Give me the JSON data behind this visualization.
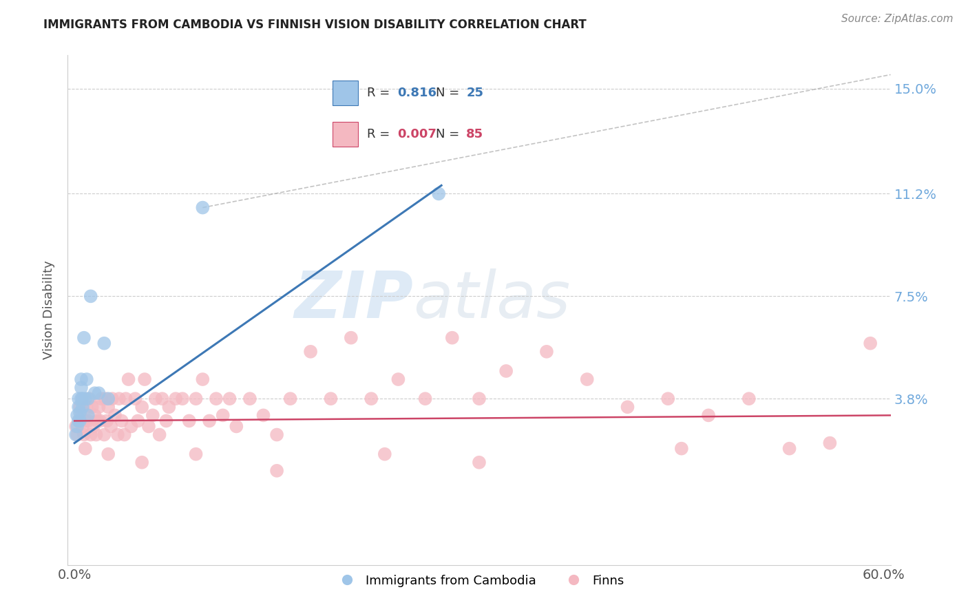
{
  "title": "IMMIGRANTS FROM CAMBODIA VS FINNISH VISION DISABILITY CORRELATION CHART",
  "source": "Source: ZipAtlas.com",
  "ylabel": "Vision Disability",
  "legend_label_blue": "Immigrants from Cambodia",
  "legend_label_pink": "Finns",
  "R_blue": 0.816,
  "N_blue": 25,
  "R_pink": 0.007,
  "N_pink": 85,
  "xlim": [
    -0.005,
    0.605
  ],
  "ylim": [
    -0.022,
    0.162
  ],
  "yticks": [
    0.038,
    0.075,
    0.112,
    0.15
  ],
  "ytick_labels": [
    "3.8%",
    "7.5%",
    "11.2%",
    "15.0%"
  ],
  "xticks": [
    0.0,
    0.6
  ],
  "xtick_labels": [
    "0.0%",
    "60.0%"
  ],
  "watermark_zip": "ZIP",
  "watermark_atlas": "atlas",
  "color_blue": "#9fc5e8",
  "color_pink": "#f4b8c1",
  "color_blue_dark": "#3d78b5",
  "color_pink_dark": "#cc4466",
  "color_blue_line": "#3d78b5",
  "color_pink_line": "#cc4466",
  "color_right_labels": "#6fa8dc",
  "blue_scatter_x": [
    0.001,
    0.002,
    0.002,
    0.003,
    0.003,
    0.003,
    0.004,
    0.004,
    0.005,
    0.005,
    0.005,
    0.006,
    0.006,
    0.007,
    0.008,
    0.009,
    0.01,
    0.01,
    0.012,
    0.015,
    0.018,
    0.022,
    0.025,
    0.095,
    0.27
  ],
  "blue_scatter_y": [
    0.025,
    0.028,
    0.032,
    0.03,
    0.035,
    0.038,
    0.03,
    0.033,
    0.038,
    0.042,
    0.045,
    0.035,
    0.038,
    0.06,
    0.038,
    0.045,
    0.032,
    0.038,
    0.075,
    0.04,
    0.04,
    0.058,
    0.038,
    0.107,
    0.112
  ],
  "blue_line_x": [
    0.0,
    0.272
  ],
  "blue_line_y": [
    0.022,
    0.115
  ],
  "pink_line_x": [
    0.0,
    0.605
  ],
  "pink_line_y": [
    0.03,
    0.032
  ],
  "diag_line_x": [
    0.095,
    0.605
  ],
  "diag_line_y": [
    0.107,
    0.155
  ],
  "pink_scatter_x": [
    0.001,
    0.002,
    0.003,
    0.004,
    0.005,
    0.006,
    0.007,
    0.008,
    0.009,
    0.01,
    0.011,
    0.012,
    0.013,
    0.014,
    0.015,
    0.016,
    0.017,
    0.018,
    0.019,
    0.02,
    0.022,
    0.023,
    0.024,
    0.025,
    0.027,
    0.028,
    0.03,
    0.032,
    0.033,
    0.035,
    0.037,
    0.038,
    0.04,
    0.042,
    0.045,
    0.047,
    0.05,
    0.052,
    0.055,
    0.058,
    0.06,
    0.063,
    0.065,
    0.068,
    0.07,
    0.075,
    0.08,
    0.085,
    0.09,
    0.095,
    0.1,
    0.105,
    0.11,
    0.115,
    0.12,
    0.13,
    0.14,
    0.15,
    0.16,
    0.175,
    0.19,
    0.205,
    0.22,
    0.24,
    0.26,
    0.28,
    0.3,
    0.32,
    0.35,
    0.38,
    0.41,
    0.44,
    0.47,
    0.5,
    0.53,
    0.56,
    0.59,
    0.008,
    0.025,
    0.05,
    0.09,
    0.15,
    0.23,
    0.3,
    0.45
  ],
  "pink_scatter_y": [
    0.028,
    0.025,
    0.03,
    0.035,
    0.032,
    0.028,
    0.025,
    0.03,
    0.035,
    0.03,
    0.038,
    0.025,
    0.035,
    0.028,
    0.032,
    0.025,
    0.03,
    0.035,
    0.03,
    0.038,
    0.025,
    0.038,
    0.03,
    0.035,
    0.028,
    0.038,
    0.032,
    0.025,
    0.038,
    0.03,
    0.025,
    0.038,
    0.045,
    0.028,
    0.038,
    0.03,
    0.035,
    0.045,
    0.028,
    0.032,
    0.038,
    0.025,
    0.038,
    0.03,
    0.035,
    0.038,
    0.038,
    0.03,
    0.038,
    0.045,
    0.03,
    0.038,
    0.032,
    0.038,
    0.028,
    0.038,
    0.032,
    0.025,
    0.038,
    0.055,
    0.038,
    0.06,
    0.038,
    0.045,
    0.038,
    0.06,
    0.038,
    0.048,
    0.055,
    0.045,
    0.035,
    0.038,
    0.032,
    0.038,
    0.02,
    0.022,
    0.058,
    0.02,
    0.018,
    0.015,
    0.018,
    0.012,
    0.018,
    0.015,
    0.02
  ]
}
